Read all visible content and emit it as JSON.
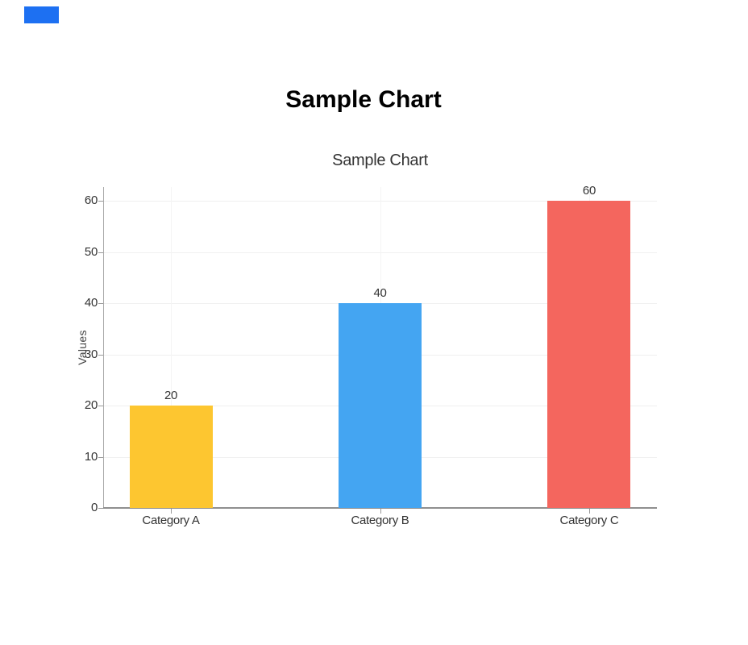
{
  "page": {
    "background": "#ffffff",
    "corner_marker_color": "#1d70f2"
  },
  "header": {
    "title": "Sample Chart"
  },
  "chart_data": {
    "type": "bar",
    "title": "Sample Chart",
    "categories": [
      "Category A",
      "Category B",
      "Category C"
    ],
    "values": [
      20,
      40,
      60
    ],
    "bar_value_labels": [
      "20",
      "40",
      "60"
    ],
    "bar_colors": [
      "#FDC630",
      "#44A5F2",
      "#F4665E"
    ],
    "xlabel": "",
    "ylabel": "Values",
    "ylim": [
      0,
      60
    ],
    "yticks": [
      0,
      10,
      20,
      30,
      40,
      50,
      60
    ],
    "grid": true,
    "legend_position": "none",
    "colors": {
      "x_axis_line": "#8f8f8f",
      "y_axis_line": "#aaaaaa",
      "tick_mark": "#999999",
      "grid_horizontal": "#f0f0f0",
      "grid_vertical": "#f4f4f4",
      "tick_text": "#333333",
      "chart_title_text": "#333333",
      "axis_title_text": "#444444",
      "main_title_text": "#000000"
    }
  }
}
